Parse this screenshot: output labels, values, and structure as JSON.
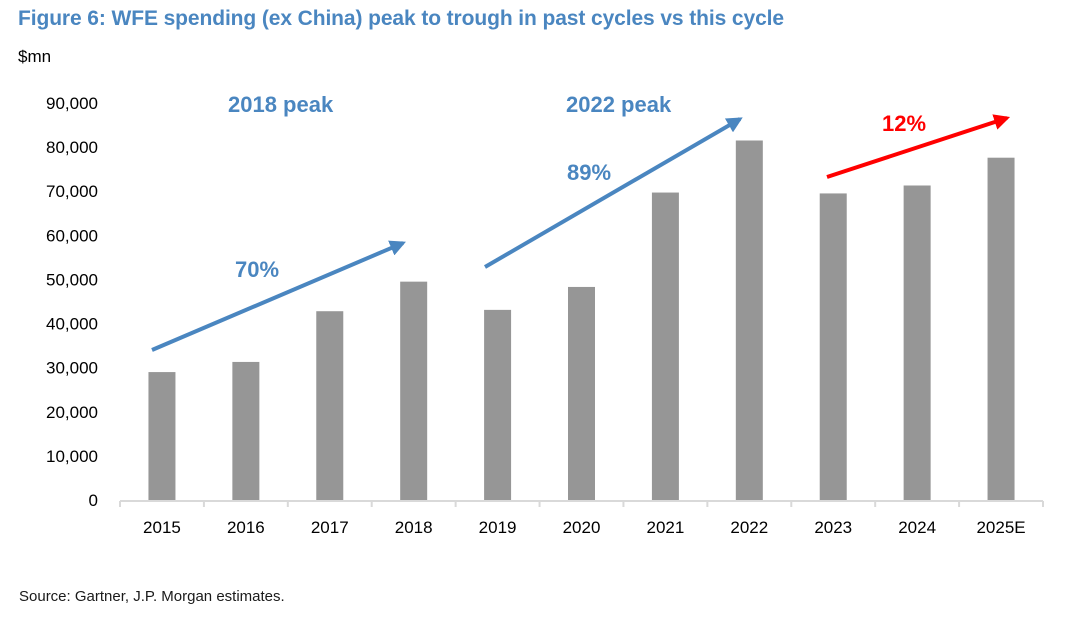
{
  "chart_data": {
    "type": "bar",
    "title": "Figure 6: WFE spending (ex China) peak to trough in past cycles vs this cycle",
    "ylabel": "$mn",
    "xlabel": "",
    "categories": [
      "2015",
      "2016",
      "2017",
      "2018",
      "2019",
      "2020",
      "2021",
      "2022",
      "2023",
      "2024",
      "2025E"
    ],
    "values": [
      29000,
      31300,
      42800,
      49500,
      43100,
      48300,
      69700,
      81500,
      69500,
      71300,
      77600
    ],
    "ylim": [
      0,
      90000
    ],
    "yticks": [
      0,
      10000,
      20000,
      30000,
      40000,
      50000,
      60000,
      70000,
      80000,
      90000
    ],
    "ytick_labels": [
      "0",
      "10,000",
      "20,000",
      "30,000",
      "40,000",
      "50,000",
      "60,000",
      "70,000",
      "80,000",
      "90,000"
    ],
    "grid": false,
    "legend": "none",
    "bar_color": "#969696",
    "annotations": [
      {
        "id": "label-2018-peak",
        "text": "2018 peak",
        "color": "#4A86C0"
      },
      {
        "id": "label-2022-peak",
        "text": "2022 peak",
        "color": "#4A86C0"
      },
      {
        "id": "pct-2015-2018",
        "text": "70%",
        "color": "#4A86C0",
        "arrow_from": "2015",
        "arrow_to": "2018"
      },
      {
        "id": "pct-2019-2022",
        "text": "89%",
        "color": "#4A86C0",
        "arrow_from": "2019",
        "arrow_to": "2022"
      },
      {
        "id": "pct-2023-2025E",
        "text": "12%",
        "color": "#FF0000",
        "arrow_from": "2023",
        "arrow_to": "2025E"
      }
    ]
  },
  "header": {
    "title": "Figure 6: WFE spending (ex China) peak to trough in past cycles vs this cycle",
    "unit": "$mn"
  },
  "footer": {
    "source": "Source: Gartner, J.P. Morgan estimates."
  }
}
